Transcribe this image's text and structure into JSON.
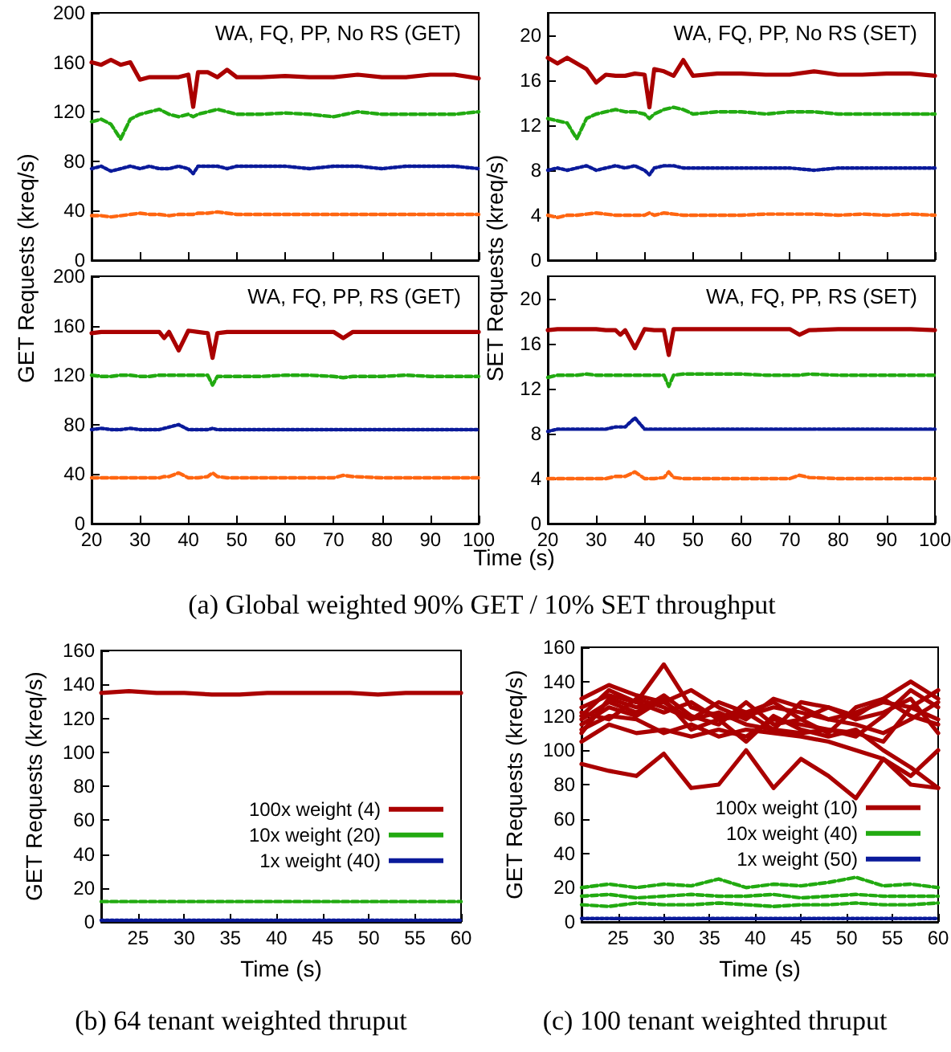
{
  "chart_data": [
    {
      "type": "line",
      "title": "WA, FQ, PP, No RS (GET)",
      "ylabel": "GET Requests (kreq/s)",
      "x": [
        20,
        22,
        24,
        26,
        28,
        30,
        32,
        34,
        36,
        38,
        40,
        41,
        42,
        44,
        46,
        48,
        50,
        55,
        60,
        65,
        70,
        75,
        80,
        85,
        90,
        95,
        100
      ],
      "xlim": [
        20,
        100
      ],
      "xticks": [
        20,
        30,
        40,
        50,
        60,
        70,
        80,
        90,
        100
      ],
      "ylim": [
        0,
        200
      ],
      "yticks": [
        0,
        40,
        80,
        120,
        160,
        200
      ],
      "tick_labels": "y",
      "marker": "none",
      "series": [
        {
          "color": "#aa0000",
          "line_style": "solid",
          "values": [
            160,
            158,
            162,
            158,
            160,
            146,
            148,
            148,
            148,
            148,
            150,
            124,
            152,
            152,
            148,
            154,
            148,
            148,
            149,
            148,
            148,
            150,
            148,
            148,
            150,
            150,
            147
          ]
        },
        {
          "color": "#22aa11",
          "line_style": "dashed",
          "values": [
            112,
            114,
            110,
            98,
            114,
            118,
            120,
            122,
            118,
            116,
            118,
            116,
            118,
            120,
            122,
            120,
            118,
            118,
            119,
            118,
            116,
            120,
            118,
            118,
            118,
            118,
            120
          ]
        },
        {
          "color": "#0a1a9a",
          "line_style": "dotted",
          "values": [
            74,
            76,
            72,
            74,
            76,
            74,
            76,
            74,
            74,
            76,
            74,
            70,
            76,
            76,
            76,
            74,
            76,
            76,
            76,
            74,
            76,
            76,
            74,
            76,
            76,
            76,
            74
          ]
        },
        {
          "color": "#ff6611",
          "line_style": "dashed",
          "values": [
            36,
            36,
            35,
            36,
            37,
            38,
            37,
            37,
            36,
            37,
            37,
            37,
            38,
            38,
            39,
            38,
            37,
            37,
            37,
            37,
            37,
            37,
            37,
            37,
            37,
            37,
            37
          ]
        }
      ]
    },
    {
      "type": "line",
      "title": "WA, FQ, PP, No RS (SET)",
      "ylabel": "SET Requests (kreq/s)",
      "x": [
        20,
        22,
        24,
        26,
        28,
        30,
        32,
        34,
        36,
        38,
        40,
        41,
        42,
        44,
        46,
        48,
        50,
        55,
        60,
        65,
        70,
        75,
        80,
        85,
        90,
        95,
        100
      ],
      "xlim": [
        20,
        100
      ],
      "xticks": [
        20,
        30,
        40,
        50,
        60,
        70,
        80,
        90,
        100
      ],
      "ylim": [
        0,
        22
      ],
      "yticks": [
        0,
        4,
        8,
        12,
        16,
        20
      ],
      "tick_labels": "y",
      "marker": "none",
      "series": [
        {
          "color": "#aa0000",
          "line_style": "solid",
          "values": [
            18,
            17.5,
            18,
            17.5,
            17,
            15.8,
            16.5,
            16.4,
            16.4,
            16.6,
            16.5,
            13.6,
            17,
            16.8,
            16.4,
            17.8,
            16.4,
            16.6,
            16.6,
            16.5,
            16.5,
            16.8,
            16.5,
            16.5,
            16.6,
            16.6,
            16.4
          ]
        },
        {
          "color": "#22aa11",
          "line_style": "dashed",
          "values": [
            12.6,
            12.4,
            12.2,
            10.8,
            12.6,
            13,
            13.2,
            13.4,
            13.2,
            13.2,
            13,
            12.6,
            13,
            13.4,
            13.6,
            13.4,
            13,
            13.2,
            13.2,
            13,
            13.2,
            13.2,
            13,
            13,
            13,
            13,
            13
          ]
        },
        {
          "color": "#0a1a9a",
          "line_style": "dotted",
          "values": [
            8,
            8.2,
            8,
            8.2,
            8.4,
            8,
            8.2,
            8.4,
            8.2,
            8.4,
            8,
            7.6,
            8.2,
            8.4,
            8.4,
            8.2,
            8.2,
            8.2,
            8.2,
            8.2,
            8.2,
            8,
            8.2,
            8.2,
            8.2,
            8.2,
            8.2
          ]
        },
        {
          "color": "#ff6611",
          "line_style": "dashed",
          "values": [
            4,
            3.8,
            4,
            4,
            4.1,
            4.2,
            4.1,
            4,
            4,
            4,
            4,
            4.2,
            4,
            4.2,
            4.1,
            4,
            4,
            4,
            4,
            4.1,
            4.1,
            4.1,
            4,
            4.1,
            4,
            4.1,
            4
          ]
        }
      ]
    },
    {
      "type": "line",
      "title": "WA, FQ, PP, RS (GET)",
      "xlabel": "Time (s)",
      "annotations": [
        "(a) Global weighted 90% GET / 10% SET throughput"
      ],
      "x": [
        20,
        22,
        24,
        26,
        28,
        30,
        32,
        34,
        35,
        36,
        38,
        40,
        42,
        44,
        45,
        46,
        48,
        50,
        55,
        60,
        65,
        70,
        72,
        74,
        80,
        85,
        90,
        95,
        100
      ],
      "xlim": [
        20,
        100
      ],
      "xticks": [
        20,
        30,
        40,
        50,
        60,
        70,
        80,
        90,
        100
      ],
      "ylim": [
        0,
        200
      ],
      "yticks": [
        0,
        40,
        80,
        120,
        160,
        200
      ],
      "marker": "none",
      "series": [
        {
          "color": "#aa0000",
          "line_style": "solid",
          "values": [
            154,
            155,
            155,
            155,
            155,
            155,
            155,
            155,
            150,
            155,
            140,
            156,
            155,
            154,
            134,
            154,
            155,
            155,
            155,
            155,
            155,
            155,
            150,
            155,
            155,
            155,
            155,
            155,
            155
          ]
        },
        {
          "color": "#22aa11",
          "line_style": "dashed",
          "values": [
            120,
            119,
            119,
            120,
            120,
            119,
            119,
            120,
            120,
            120,
            120,
            120,
            120,
            120,
            112,
            119,
            119,
            119,
            119,
            120,
            120,
            119,
            118,
            119,
            119,
            120,
            119,
            119,
            119
          ]
        },
        {
          "color": "#0a1a9a",
          "line_style": "dotted",
          "values": [
            76,
            77,
            76,
            76,
            77,
            76,
            76,
            76,
            77,
            78,
            80,
            76,
            76,
            76,
            77,
            76,
            76,
            76,
            76,
            76,
            76,
            76,
            76,
            76,
            76,
            76,
            76,
            76,
            76
          ]
        },
        {
          "color": "#ff6611",
          "line_style": "dashed",
          "values": [
            37,
            37,
            37,
            37,
            37,
            37,
            37,
            37,
            38,
            38,
            41,
            37,
            37,
            38,
            41,
            38,
            37,
            37,
            37,
            37,
            37,
            37,
            39,
            38,
            37,
            37,
            37,
            37,
            37
          ]
        }
      ]
    },
    {
      "type": "line",
      "title": "WA, FQ, PP, RS (SET)",
      "x": [
        20,
        22,
        24,
        26,
        28,
        30,
        32,
        34,
        35,
        36,
        38,
        40,
        42,
        44,
        45,
        46,
        48,
        50,
        55,
        60,
        65,
        70,
        72,
        74,
        80,
        85,
        90,
        95,
        100
      ],
      "xlim": [
        20,
        100
      ],
      "xticks": [
        20,
        30,
        40,
        50,
        60,
        70,
        80,
        90,
        100
      ],
      "ylim": [
        0,
        22
      ],
      "yticks": [
        0,
        4,
        8,
        12,
        16,
        20
      ],
      "marker": "none",
      "series": [
        {
          "color": "#aa0000",
          "line_style": "solid",
          "values": [
            17.2,
            17.3,
            17.3,
            17.3,
            17.3,
            17.3,
            17.2,
            17.2,
            16.8,
            17.2,
            15.6,
            17.3,
            17.2,
            17.2,
            15,
            17.3,
            17.3,
            17.3,
            17.3,
            17.3,
            17.3,
            17.3,
            16.8,
            17.2,
            17.3,
            17.3,
            17.3,
            17.3,
            17.2
          ]
        },
        {
          "color": "#22aa11",
          "line_style": "dashed",
          "values": [
            13,
            13.2,
            13.2,
            13.2,
            13.3,
            13.2,
            13.2,
            13.2,
            13.2,
            13.2,
            13.2,
            13.2,
            13.2,
            13.2,
            12.2,
            13.2,
            13.3,
            13.3,
            13.3,
            13.3,
            13.2,
            13.2,
            13.2,
            13.3,
            13.2,
            13.2,
            13.2,
            13.2,
            13.2
          ]
        },
        {
          "color": "#0a1a9a",
          "line_style": "dotted",
          "values": [
            8.2,
            8.4,
            8.4,
            8.4,
            8.4,
            8.4,
            8.4,
            8.6,
            8.6,
            8.6,
            9.4,
            8.4,
            8.4,
            8.4,
            8.4,
            8.4,
            8.4,
            8.4,
            8.4,
            8.4,
            8.4,
            8.4,
            8.4,
            8.4,
            8.4,
            8.4,
            8.4,
            8.4,
            8.4
          ]
        },
        {
          "color": "#ff6611",
          "line_style": "dashed",
          "values": [
            4,
            4,
            4,
            4,
            4,
            4,
            4,
            4.2,
            4.2,
            4.2,
            4.6,
            4,
            4,
            4.1,
            4.6,
            4.1,
            4,
            4,
            4,
            4,
            4,
            4,
            4.3,
            4.1,
            4,
            4,
            4,
            4,
            4
          ]
        }
      ]
    },
    {
      "type": "line",
      "xlabel": "Time (s)",
      "ylabel": "GET Requests (kreq/s)",
      "annotations": [
        "(b) 64 tenant weighted thruput"
      ],
      "x": [
        21,
        24,
        27,
        30,
        33,
        36,
        39,
        42,
        45,
        48,
        51,
        54,
        57,
        60
      ],
      "xlim": [
        21,
        60
      ],
      "xticks": [
        25,
        30,
        35,
        40,
        45,
        50,
        55,
        60
      ],
      "ylim": [
        0,
        160
      ],
      "yticks": [
        0,
        20,
        40,
        60,
        80,
        100,
        120,
        140,
        160
      ],
      "marker": "none",
      "legend": "right",
      "series": [
        {
          "name": "100x weight (4)",
          "color": "#aa0000",
          "line_style": "solid",
          "values": [
            135,
            136,
            135,
            135,
            134,
            134,
            135,
            135,
            135,
            135,
            134,
            135,
            135,
            135
          ]
        },
        {
          "name": "10x weight (20)",
          "color": "#22aa11",
          "line_style": "dashed",
          "values": [
            12,
            12,
            12,
            12,
            12,
            12,
            12,
            12,
            12,
            12,
            12,
            12,
            12,
            12
          ]
        },
        {
          "name": "1x weight (40)",
          "color": "#0a1a9a",
          "line_style": "dotted",
          "values": [
            1,
            1,
            1,
            1,
            1,
            1,
            1,
            1,
            1,
            1,
            1,
            1,
            1,
            1
          ]
        }
      ]
    },
    {
      "type": "line",
      "xlabel": "Time (s)",
      "ylabel": "GET Requests (kreq/s)",
      "annotations": [
        "(c) 100 tenant weighted thruput"
      ],
      "x": [
        21,
        24,
        27,
        30,
        33,
        36,
        39,
        42,
        45,
        48,
        51,
        54,
        57,
        60
      ],
      "xlim": [
        21,
        60
      ],
      "xticks": [
        25,
        30,
        35,
        40,
        45,
        50,
        55,
        60
      ],
      "ylim": [
        0,
        160
      ],
      "yticks": [
        0,
        20,
        40,
        60,
        80,
        100,
        120,
        140,
        160
      ],
      "marker": "none",
      "legend": "right",
      "series": [
        {
          "name": "100x weight (10)",
          "color": "#aa0000",
          "line_style": "solid",
          "values": [
            120,
            135,
            128,
            150,
            125,
            120,
            122,
            128,
            118,
            110,
            125,
            130,
            140,
            130
          ]
        },
        {
          "color": "#aa0000",
          "line_style": "solid",
          "values": [
            110,
            130,
            125,
            128,
            118,
            122,
            115,
            112,
            110,
            112,
            108,
            120,
            135,
            125
          ]
        },
        {
          "color": "#aa0000",
          "line_style": "solid",
          "values": [
            92,
            88,
            85,
            98,
            78,
            80,
            100,
            78,
            95,
            85,
            72,
            95,
            85,
            100
          ]
        },
        {
          "color": "#aa0000",
          "line_style": "solid",
          "values": [
            115,
            125,
            120,
            130,
            112,
            118,
            105,
            120,
            112,
            108,
            112,
            100,
            90,
            78
          ]
        },
        {
          "color": "#aa0000",
          "line_style": "solid",
          "values": [
            125,
            132,
            128,
            122,
            128,
            118,
            120,
            125,
            122,
            118,
            115,
            110,
            118,
            128
          ]
        },
        {
          "color": "#aa0000",
          "line_style": "solid",
          "values": [
            105,
            115,
            110,
            112,
            108,
            112,
            108,
            118,
            115,
            112,
            110,
            105,
            125,
            135
          ]
        },
        {
          "color": "#aa0000",
          "line_style": "solid",
          "values": [
            118,
            128,
            122,
            132,
            120,
            115,
            128,
            115,
            118,
            125,
            120,
            130,
            120,
            115
          ]
        },
        {
          "color": "#aa0000",
          "line_style": "solid",
          "values": [
            130,
            138,
            132,
            128,
            135,
            125,
            118,
            130,
            125,
            118,
            122,
            128,
            125,
            118
          ]
        },
        {
          "color": "#aa0000",
          "line_style": "solid",
          "values": [
            112,
            120,
            118,
            110,
            115,
            108,
            112,
            110,
            108,
            105,
            100,
            95,
            80,
            78
          ]
        },
        {
          "color": "#aa0000",
          "line_style": "solid",
          "values": [
            122,
            118,
            130,
            125,
            118,
            128,
            122,
            112,
            128,
            125,
            118,
            122,
            130,
            110
          ]
        },
        {
          "name": "10x weight (40)",
          "color": "#22aa11",
          "line_style": "dashed",
          "values": [
            20,
            22,
            20,
            22,
            21,
            25,
            20,
            22,
            21,
            23,
            26,
            21,
            22,
            20
          ]
        },
        {
          "color": "#22aa11",
          "line_style": "dashed",
          "values": [
            15,
            16,
            14,
            15,
            16,
            15,
            15,
            16,
            14,
            15,
            16,
            15,
            15,
            15
          ]
        },
        {
          "color": "#22aa11",
          "line_style": "dashed",
          "values": [
            10,
            9,
            11,
            10,
            10,
            11,
            10,
            9,
            10,
            10,
            11,
            10,
            10,
            11
          ]
        },
        {
          "name": "1x weight (50)",
          "color": "#0a1a9a",
          "line_style": "dotted",
          "values": [
            2,
            2,
            2,
            2,
            2,
            2,
            2,
            2,
            2,
            2,
            2,
            2,
            2,
            2
          ]
        }
      ]
    }
  ]
}
